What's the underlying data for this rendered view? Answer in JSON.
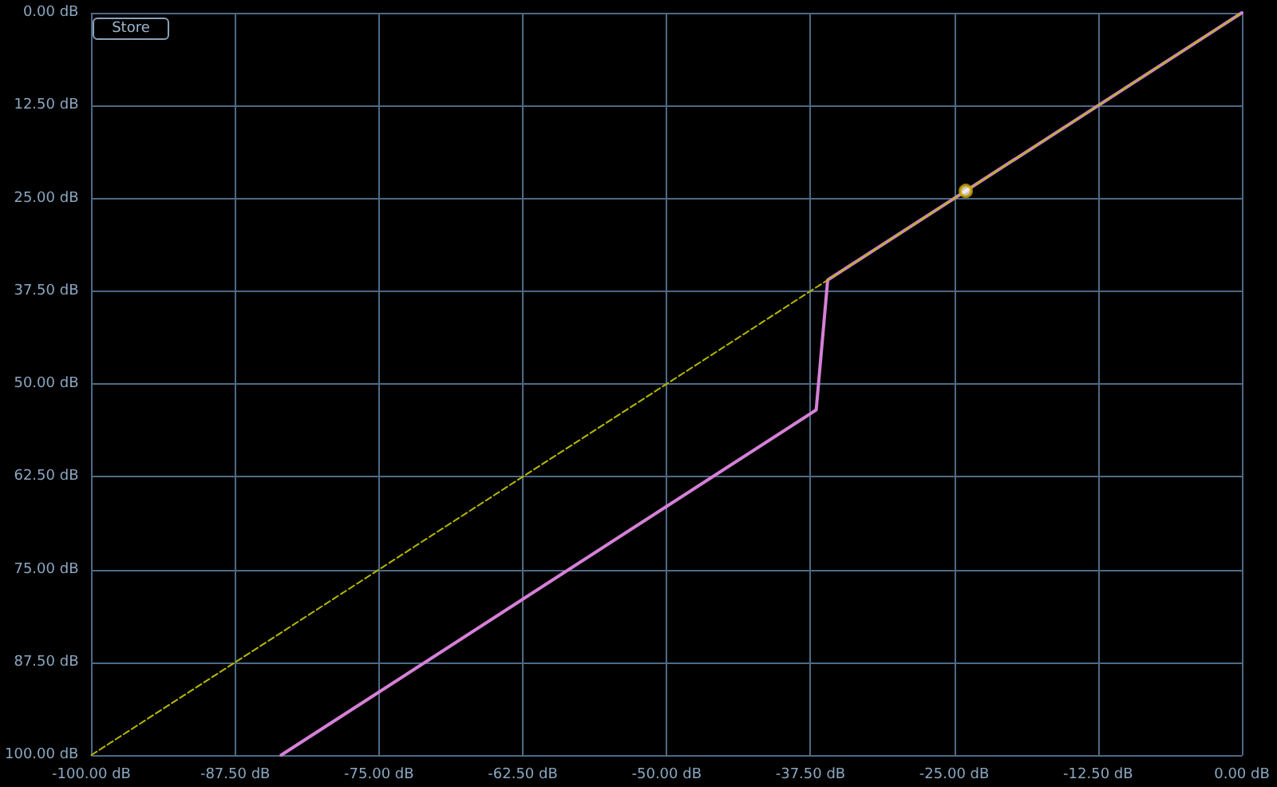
{
  "chart_data": {
    "type": "line",
    "series": [
      {
        "color": "#d580d8",
        "x": [
          -83.5,
          -37,
          -36,
          0
        ],
        "values": [
          -100,
          -53.5,
          -36,
          0
        ],
        "line_style": "solid",
        "marker": "none"
      },
      {
        "type": "line",
        "color": "#b8b800",
        "x": [
          -100,
          0
        ],
        "values": [
          -100,
          0
        ],
        "line_style": "dashed",
        "marker": "none"
      },
      {
        "type": "scatter",
        "color": "#c8a000",
        "x": [
          -24
        ],
        "values": [
          -24
        ],
        "marker": "circle"
      }
    ],
    "xlim": [
      -100,
      0
    ],
    "ylim": [
      -100,
      0
    ],
    "xticks": [
      {
        "value": -100,
        "label": "-100.00 dB"
      },
      {
        "value": -87.5,
        "label": "-87.50 dB"
      },
      {
        "value": -75,
        "label": "-75.00 dB"
      },
      {
        "value": -62.5,
        "label": "-62.50 dB"
      },
      {
        "value": -50,
        "label": "-50.00 dB"
      },
      {
        "value": -37.5,
        "label": "-37.50 dB"
      },
      {
        "value": -25,
        "label": "-25.00 dB"
      },
      {
        "value": -12.5,
        "label": "-12.50 dB"
      },
      {
        "value": 0,
        "label": "0.00 dB"
      }
    ],
    "yticks": [
      {
        "value": -100,
        "label": "100.00 dB"
      },
      {
        "value": -87.5,
        "label": "87.50 dB"
      },
      {
        "value": -75,
        "label": "75.00 dB"
      },
      {
        "value": -62.5,
        "label": "62.50 dB"
      },
      {
        "value": -50,
        "label": "50.00 dB"
      },
      {
        "value": -37.5,
        "label": "37.50 dB"
      },
      {
        "value": -25,
        "label": "25.00 dB"
      },
      {
        "value": -12.5,
        "label": "12.50 dB"
      },
      {
        "value": 0,
        "label": "0.00 dB"
      }
    ],
    "grid": true,
    "annotations": [
      "Store"
    ]
  }
}
